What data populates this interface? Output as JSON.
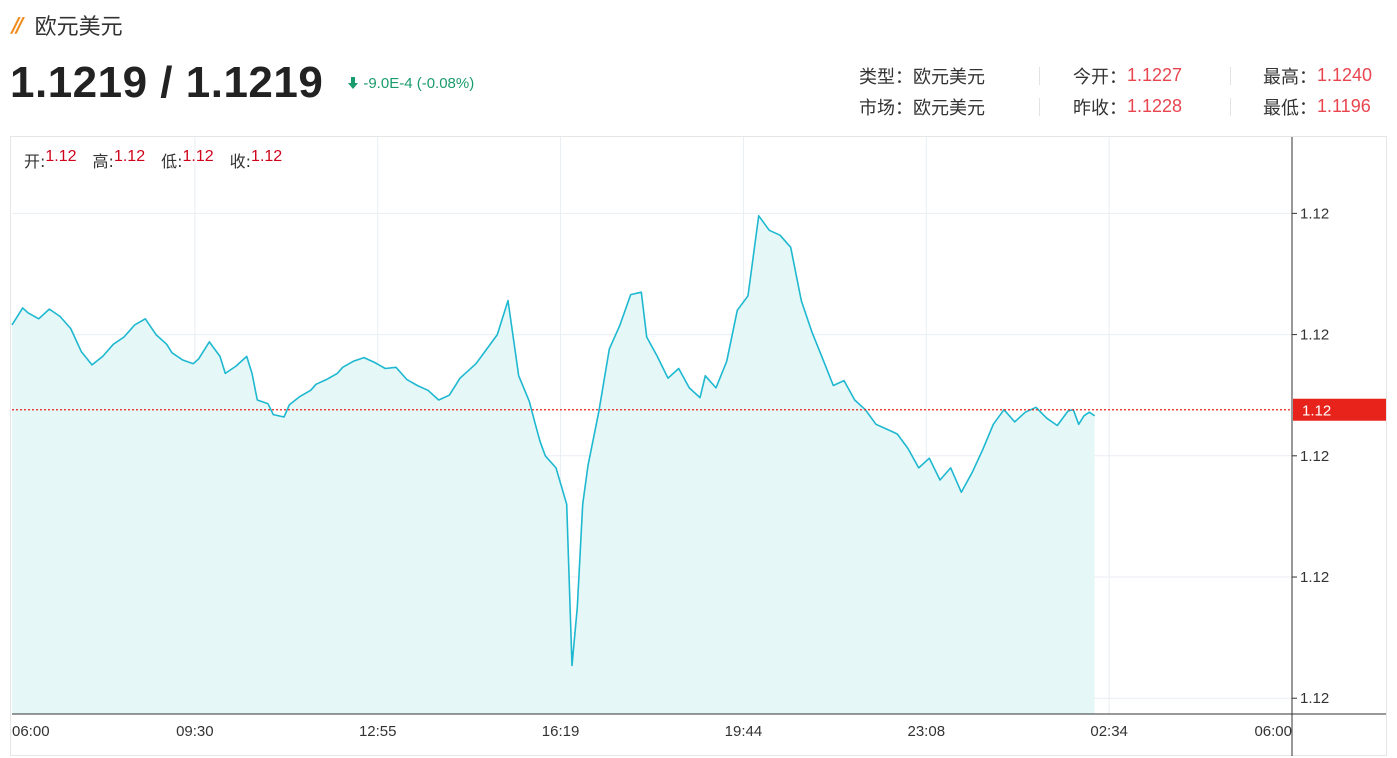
{
  "header": {
    "title": "欧元美元",
    "price": "1.1219 / 1.1219",
    "change": "-9.0E-4 (-0.08%)",
    "change_color": "#1a9b6c",
    "change_icon": "arrow-down-icon"
  },
  "stats": {
    "type_label": "类型：",
    "type_value": "欧元美元",
    "market_label": "市场：",
    "market_value": "欧元美元",
    "open_label": "今开：",
    "open_value": "1.1227",
    "prev_close_label": "昨收：",
    "prev_close_value": "1.1228",
    "high_label": "最高：",
    "high_value": "1.1240",
    "low_label": "最低：",
    "low_value": "1.1196"
  },
  "ohlc": {
    "open_label": "开:",
    "open_value": "1.12",
    "high_label": "高:",
    "high_value": "1.12",
    "low_label": "低:",
    "low_value": "1.12",
    "close_label": "收:",
    "close_value": "1.12"
  },
  "chart_data": {
    "type": "area",
    "title": "",
    "xlabel": "",
    "ylabel": "",
    "x_ticks": [
      "06:00",
      "09:30",
      "12:55",
      "16:19",
      "19:44",
      "23:08",
      "02:34",
      "06:00"
    ],
    "y_ticks": [
      "1.12",
      "1.12",
      "1.12",
      "1.12",
      "1.12"
    ],
    "y_tick_values": [
      1.1235,
      1.1225,
      1.1215,
      1.1205,
      1.1195
    ],
    "ylim": [
      1.11937,
      1.12413
    ],
    "current_price": 1.12188,
    "current_price_label": "1.12",
    "colors": {
      "line": "#1eb8d0",
      "fill": "#e6f7f8",
      "current_line": "#e8231c",
      "current_badge": "#e8231c"
    },
    "series": [
      {
        "x_hours_from_start": [
          0,
          0.2,
          0.3,
          0.5,
          0.7,
          0.9,
          1.1,
          1.3,
          1.5,
          1.7,
          1.9,
          2.1,
          2.3,
          2.5,
          2.7,
          2.9,
          3.0,
          3.2,
          3.4,
          3.5,
          3.7,
          3.9,
          4.0,
          4.2,
          4.4,
          4.5,
          4.6,
          4.8,
          4.9,
          5.1,
          5.2,
          5.4,
          5.6,
          5.7,
          5.9,
          6.1,
          6.2,
          6.4,
          6.6,
          6.8,
          7.0,
          7.2,
          7.4,
          7.6,
          7.8,
          8.0,
          8.2,
          8.4,
          8.7,
          8.9,
          9.1,
          9.3,
          9.5,
          9.7,
          9.8,
          9.9,
          10.0,
          10.2,
          10.4,
          10.5,
          10.6,
          10.7,
          10.8,
          11.0,
          11.2,
          11.4,
          11.6,
          11.8,
          11.9,
          12.1,
          12.3,
          12.5,
          12.7,
          12.9,
          13.0,
          13.2,
          13.4,
          13.6,
          13.8,
          14.0,
          14.2,
          14.4,
          14.6,
          14.8,
          15.0,
          15.2,
          15.4,
          15.6,
          15.8,
          16.0,
          16.2,
          16.4,
          16.6,
          16.8,
          17.0,
          17.2,
          17.4,
          17.6,
          17.8,
          18.0,
          18.2,
          18.4,
          18.6,
          18.8,
          19.0,
          19.2,
          19.4,
          19.6,
          19.8,
          19.9,
          20.0,
          20.1,
          20.2,
          20.3
        ],
        "values": [
          1.12258,
          1.12272,
          1.12268,
          1.12263,
          1.12271,
          1.12265,
          1.12255,
          1.12236,
          1.12225,
          1.12232,
          1.12242,
          1.12248,
          1.12258,
          1.12263,
          1.1225,
          1.12242,
          1.12235,
          1.12229,
          1.12226,
          1.1223,
          1.12244,
          1.12232,
          1.12218,
          1.12224,
          1.12232,
          1.12218,
          1.12196,
          1.12193,
          1.12184,
          1.12182,
          1.12192,
          1.12199,
          1.12204,
          1.12209,
          1.12213,
          1.12218,
          1.12223,
          1.12228,
          1.12231,
          1.12227,
          1.12222,
          1.12223,
          1.12213,
          1.12208,
          1.12204,
          1.12196,
          1.122,
          1.12214,
          1.12226,
          1.12238,
          1.1225,
          1.12278,
          1.12216,
          1.12195,
          1.12178,
          1.12162,
          1.1215,
          1.1214,
          1.1211,
          1.11977,
          1.12025,
          1.1211,
          1.12142,
          1.12186,
          1.12238,
          1.12258,
          1.12283,
          1.12285,
          1.12248,
          1.12232,
          1.12214,
          1.12222,
          1.12206,
          1.12198,
          1.12216,
          1.12206,
          1.12228,
          1.1227,
          1.12282,
          1.12348,
          1.12336,
          1.12332,
          1.12322,
          1.12278,
          1.12252,
          1.1223,
          1.12208,
          1.12212,
          1.12196,
          1.12188,
          1.12176,
          1.12172,
          1.12168,
          1.12156,
          1.1214,
          1.12148,
          1.1213,
          1.1214,
          1.1212,
          1.12136,
          1.12155,
          1.12176,
          1.12188,
          1.12178,
          1.12186,
          1.1219,
          1.12181,
          1.12175,
          1.12187,
          1.12188,
          1.12176,
          1.12183,
          1.12186,
          1.12183
        ]
      }
    ]
  }
}
